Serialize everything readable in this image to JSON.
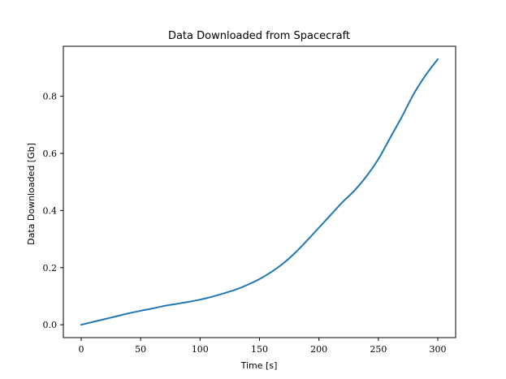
{
  "chart_data": {
    "type": "line",
    "title": "Data Downloaded from Spacecraft",
    "xlabel": "Time [s]",
    "ylabel": "Data Downloaded [Gb]",
    "xlim": [
      -15,
      315
    ],
    "ylim": [
      -0.045,
      0.975
    ],
    "xticks": [
      0,
      50,
      100,
      150,
      200,
      250,
      300
    ],
    "yticks": [
      0.0,
      0.2,
      0.4,
      0.6,
      0.8
    ],
    "xtick_labels": [
      "0",
      "50",
      "100",
      "150",
      "200",
      "250",
      "300"
    ],
    "ytick_labels": [
      "0.0",
      "0.2",
      "0.4",
      "0.6",
      "0.8"
    ],
    "grid": false,
    "series": [
      {
        "color": "#1f77b4",
        "x": [
          0,
          10,
          20,
          30,
          40,
          50,
          60,
          70,
          80,
          90,
          100,
          110,
          120,
          130,
          140,
          150,
          160,
          170,
          180,
          190,
          200,
          210,
          220,
          230,
          240,
          250,
          260,
          270,
          280,
          290,
          300
        ],
        "y": [
          0.0,
          0.01,
          0.02,
          0.03,
          0.04,
          0.049,
          0.057,
          0.066,
          0.073,
          0.08,
          0.088,
          0.098,
          0.11,
          0.123,
          0.14,
          0.16,
          0.185,
          0.215,
          0.252,
          0.295,
          0.34,
          0.385,
          0.43,
          0.47,
          0.52,
          0.58,
          0.655,
          0.73,
          0.81,
          0.875,
          0.93
        ]
      }
    ]
  }
}
